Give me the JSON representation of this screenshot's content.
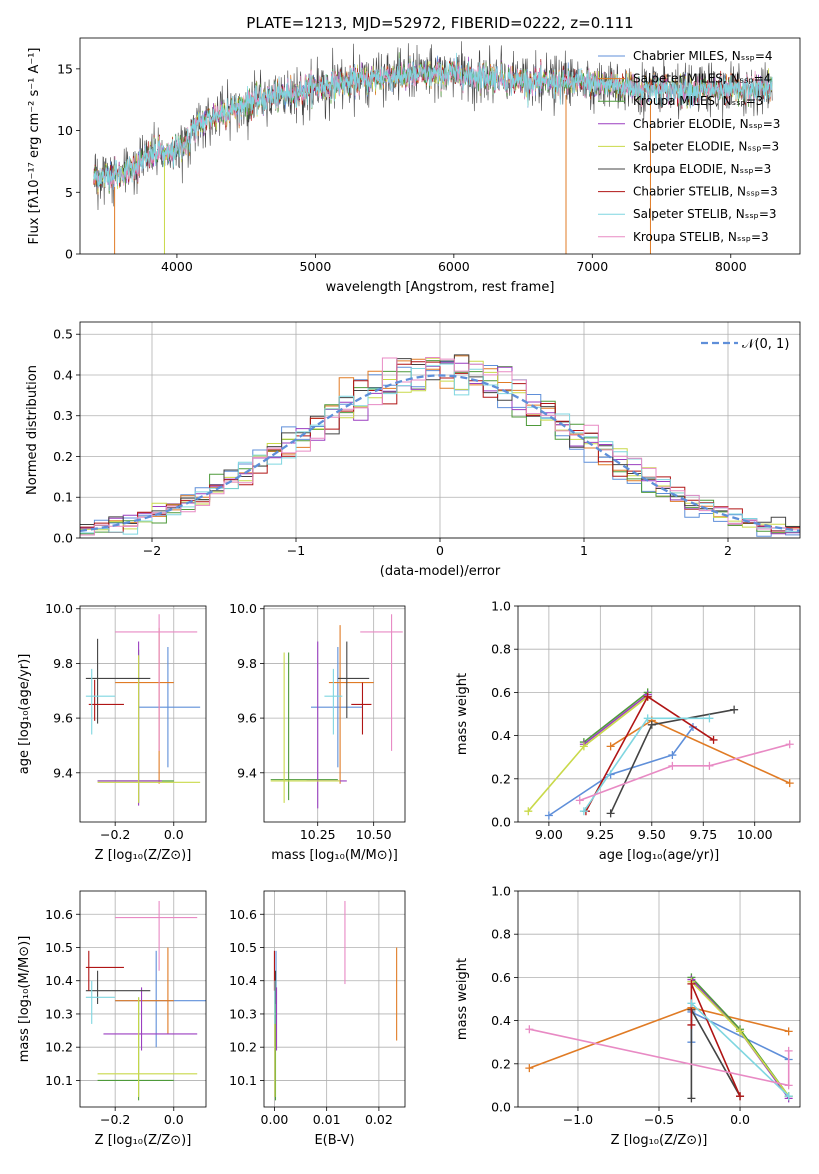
{
  "figure": {
    "colors": [
      "#5f8fd9",
      "#e07b25",
      "#4e9a3a",
      "#9b3fc0",
      "#c9d94a",
      "#444444",
      "#b01515",
      "#7fd6e0",
      "#e88ac4"
    ]
  },
  "chart_data": [
    {
      "id": "spectrum",
      "type": "line",
      "title": "PLATE=1213, MJD=52972, FIBERID=0222, z=0.111",
      "xlabel": "wavelength [Angstrom, rest frame]",
      "ylabel": "Flux [fλ10⁻¹⁷ erg cm⁻² s⁻¹ A⁻¹]",
      "xlim": [
        3300,
        8500
      ],
      "ylim": [
        0,
        17.5
      ],
      "xticks": [
        4000,
        5000,
        6000,
        7000,
        8000
      ],
      "yticks": [
        0,
        5,
        10,
        15
      ],
      "continuum": {
        "x": [
          3400,
          3600,
          3900,
          4200,
          4500,
          5000,
          5500,
          6000,
          6500,
          7000,
          7500,
          8000,
          8300
        ],
        "y": [
          6.2,
          6.5,
          8.5,
          10.8,
          12.2,
          13.5,
          14.4,
          14.6,
          14.0,
          13.8,
          13.3,
          13.2,
          13.4
        ]
      },
      "drop_lines": [
        3550,
        3910,
        6810,
        7420
      ],
      "legend_location": "right",
      "legend": [
        "Chabrier MILES, Nₛₛₚ=4",
        "Salpeter MILES, Nₛₛₚ=4",
        "Kroupa MILES, Nₛₛₚ=3",
        "Chabrier ELODIE, Nₛₛₚ=3",
        "Salpeter ELODIE, Nₛₛₚ=3",
        "Kroupa ELODIE, Nₛₛₚ=3",
        "Chabrier STELIB, Nₛₛₚ=3",
        "Salpeter STELIB, Nₛₛₚ=3",
        "Kroupa STELIB, Nₛₛₚ=3"
      ]
    },
    {
      "id": "residuals",
      "type": "histogram",
      "xlabel": "(data-model)/error",
      "ylabel": "Normed distribution",
      "xlim": [
        -2.5,
        2.5
      ],
      "ylim": [
        0,
        0.53
      ],
      "xticks": [
        -2,
        -1,
        0,
        1,
        2
      ],
      "yticks": [
        0.0,
        0.1,
        0.2,
        0.3,
        0.4,
        0.5
      ],
      "grid": true,
      "bin_width": 0.1,
      "legend_location": "upper right",
      "legend": [
        "𝒩(0, 1)"
      ]
    },
    {
      "id": "age_vs_z",
      "type": "errorbar",
      "xlabel": "Z [log₁₀(Z/Z⊙)]",
      "ylabel": "age  [log₁₀(age/yr)]",
      "xlim": [
        -0.32,
        0.11
      ],
      "ylim": [
        9.22,
        10.01
      ],
      "xticks": [
        -0.2,
        0.0
      ],
      "yticks": [
        9.4,
        9.6,
        9.8,
        10.0
      ],
      "grid": true,
      "points": [
        {
          "c": 0,
          "x": -0.02,
          "y": 9.64,
          "xe": [
            -0.12,
            0.09
          ],
          "ye": [
            9.42,
            9.86
          ]
        },
        {
          "c": 1,
          "x": -0.05,
          "y": 9.73,
          "xe": [
            -0.2,
            0.0
          ],
          "ye": [
            9.36,
            9.93
          ]
        },
        {
          "c": 2,
          "x": -0.12,
          "y": 9.37,
          "xe": [
            -0.26,
            0.0
          ],
          "ye": [
            9.29,
            9.85
          ]
        },
        {
          "c": 3,
          "x": -0.12,
          "y": 9.37,
          "xe": [
            -0.26,
            -0.04
          ],
          "ye": [
            9.28,
            9.88
          ]
        },
        {
          "c": 4,
          "x": -0.12,
          "y": 9.365,
          "xe": [
            -0.26,
            0.09
          ],
          "ye": [
            9.29,
            9.83
          ]
        },
        {
          "c": 5,
          "x": -0.26,
          "y": 9.745,
          "xe": [
            -0.3,
            -0.08
          ],
          "ye": [
            9.58,
            9.89
          ]
        },
        {
          "c": 6,
          "x": -0.27,
          "y": 9.65,
          "xe": [
            -0.29,
            -0.17
          ],
          "ye": [
            9.59,
            9.74
          ]
        },
        {
          "c": 7,
          "x": -0.28,
          "y": 9.68,
          "xe": [
            -0.3,
            -0.2
          ],
          "ye": [
            9.54,
            9.78
          ]
        },
        {
          "c": 8,
          "x": -0.05,
          "y": 9.915,
          "xe": [
            -0.2,
            0.08
          ],
          "ye": [
            9.48,
            9.98
          ]
        }
      ]
    },
    {
      "id": "age_vs_mass",
      "type": "errorbar",
      "xlabel": "mass [log₁₀(M/M⊙)]",
      "ylabel": "",
      "xlim": [
        10.01,
        10.64
      ],
      "ylim": [
        9.22,
        10.01
      ],
      "xticks": [
        10.25,
        10.5
      ],
      "yticks": [
        9.4,
        9.6,
        9.8,
        10.0
      ],
      "grid": true,
      "points": [
        {
          "c": 0,
          "x": 10.34,
          "y": 9.64,
          "xe": [
            10.22,
            10.45
          ],
          "ye": [
            9.42,
            9.86
          ]
        },
        {
          "c": 1,
          "x": 10.35,
          "y": 9.73,
          "xe": [
            10.3,
            10.5
          ],
          "ye": [
            9.36,
            9.94
          ]
        },
        {
          "c": 2,
          "x": 10.12,
          "y": 9.375,
          "xe": [
            10.04,
            10.34
          ],
          "ye": [
            9.3,
            9.84
          ]
        },
        {
          "c": 3,
          "x": 10.25,
          "y": 9.37,
          "xe": [
            10.2,
            10.38
          ],
          "ye": [
            9.27,
            9.88
          ]
        },
        {
          "c": 4,
          "x": 10.1,
          "y": 9.37,
          "xe": [
            10.04,
            10.35
          ],
          "ye": [
            9.29,
            9.84
          ]
        },
        {
          "c": 5,
          "x": 10.38,
          "y": 9.745,
          "xe": [
            10.34,
            10.48
          ],
          "ye": [
            9.6,
            9.88
          ]
        },
        {
          "c": 6,
          "x": 10.45,
          "y": 9.65,
          "xe": [
            10.4,
            10.49
          ],
          "ye": [
            9.54,
            9.73
          ]
        },
        {
          "c": 7,
          "x": 10.32,
          "y": 9.68,
          "xe": [
            10.28,
            10.36
          ],
          "ye": [
            9.54,
            9.78
          ]
        },
        {
          "c": 8,
          "x": 10.58,
          "y": 9.915,
          "xe": [
            10.44,
            10.63
          ],
          "ye": [
            9.48,
            9.98
          ]
        }
      ]
    },
    {
      "id": "mw_vs_age",
      "type": "line",
      "xlabel": "age  [log₁₀(age/yr)]",
      "ylabel": "mass weight",
      "xlim": [
        8.85,
        10.22
      ],
      "ylim": [
        0,
        1.0
      ],
      "xticks": [
        9.0,
        9.25,
        9.5,
        9.75,
        10.0
      ],
      "yticks": [
        0.0,
        0.2,
        0.4,
        0.6,
        0.8,
        1.0
      ],
      "grid": true,
      "series": [
        {
          "c": 0,
          "x": [
            9.0,
            9.3,
            9.6,
            9.7
          ],
          "y": [
            0.03,
            0.22,
            0.31,
            0.44
          ]
        },
        {
          "c": 1,
          "x": [
            9.3,
            9.5,
            10.17
          ],
          "y": [
            0.35,
            0.47,
            0.18
          ]
        },
        {
          "c": 2,
          "x": [
            9.17,
            9.48
          ],
          "y": [
            0.37,
            0.6
          ]
        },
        {
          "c": 3,
          "x": [
            9.17,
            9.48
          ],
          "y": [
            0.36,
            0.59
          ]
        },
        {
          "c": 4,
          "x": [
            8.9,
            9.17,
            9.48
          ],
          "y": [
            0.05,
            0.35,
            0.58
          ]
        },
        {
          "c": 5,
          "x": [
            9.3,
            9.5,
            9.9
          ],
          "y": [
            0.04,
            0.45,
            0.52
          ]
        },
        {
          "c": 6,
          "x": [
            9.18,
            9.48,
            9.8
          ],
          "y": [
            0.05,
            0.58,
            0.38
          ]
        },
        {
          "c": 7,
          "x": [
            9.17,
            9.48,
            9.78
          ],
          "y": [
            0.05,
            0.48,
            0.48
          ]
        },
        {
          "c": 8,
          "x": [
            9.15,
            9.6,
            9.78,
            10.17
          ],
          "y": [
            0.1,
            0.26,
            0.26,
            0.36
          ]
        }
      ]
    },
    {
      "id": "mass_vs_z",
      "type": "errorbar",
      "xlabel": "Z [log₁₀(Z/Z⊙)]",
      "ylabel": "mass [log₁₀(M/M⊙)]",
      "xlim": [
        -0.32,
        0.11
      ],
      "ylim": [
        10.02,
        10.67
      ],
      "xticks": [
        -0.2,
        0.0
      ],
      "yticks": [
        10.1,
        10.2,
        10.3,
        10.4,
        10.5,
        10.6
      ],
      "grid": true,
      "points": [
        {
          "c": 0,
          "x": -0.06,
          "y": 10.34,
          "xe": [
            -0.2,
            0.11
          ],
          "ye": [
            10.2,
            10.49
          ]
        },
        {
          "c": 1,
          "x": -0.02,
          "y": 10.34,
          "xe": [
            -0.2,
            0.0
          ],
          "ye": [
            10.24,
            10.5
          ]
        },
        {
          "c": 2,
          "x": -0.12,
          "y": 10.1,
          "xe": [
            -0.26,
            0.0
          ],
          "ye": [
            10.04,
            10.35
          ]
        },
        {
          "c": 3,
          "x": -0.11,
          "y": 10.24,
          "xe": [
            -0.24,
            0.08
          ],
          "ye": [
            10.19,
            10.38
          ]
        },
        {
          "c": 4,
          "x": -0.12,
          "y": 10.12,
          "xe": [
            -0.26,
            0.08
          ],
          "ye": [
            10.05,
            10.35
          ]
        },
        {
          "c": 5,
          "x": -0.26,
          "y": 10.37,
          "xe": [
            -0.3,
            -0.08
          ],
          "ye": [
            10.33,
            10.43
          ]
        },
        {
          "c": 6,
          "x": -0.29,
          "y": 10.44,
          "xe": [
            -0.3,
            -0.17
          ],
          "ye": [
            10.37,
            10.49
          ]
        },
        {
          "c": 7,
          "x": -0.28,
          "y": 10.35,
          "xe": [
            -0.3,
            -0.2
          ],
          "ye": [
            10.27,
            10.4
          ]
        },
        {
          "c": 8,
          "x": -0.05,
          "y": 10.59,
          "xe": [
            -0.2,
            0.08
          ],
          "ye": [
            10.43,
            10.64
          ]
        }
      ]
    },
    {
      "id": "mass_vs_ebv",
      "type": "errorbar",
      "xlabel": "E(B-V)",
      "ylabel": "",
      "xlim": [
        -0.002,
        0.025
      ],
      "ylim": [
        10.02,
        10.67
      ],
      "xticks": [
        0.0,
        0.01,
        0.02
      ],
      "yticks": [
        10.1,
        10.2,
        10.3,
        10.4,
        10.5,
        10.6
      ],
      "grid": true,
      "points": [
        {
          "c": 0,
          "x": 0.0003,
          "y": 10.34,
          "xe": [
            0.0003,
            0.0003
          ],
          "ye": [
            10.2,
            10.49
          ]
        },
        {
          "c": 1,
          "x": 0.0234,
          "y": 10.34,
          "xe": [
            0.0234,
            0.0234
          ],
          "ye": [
            10.22,
            10.5
          ]
        },
        {
          "c": 2,
          "x": 0.0002,
          "y": 10.1,
          "xe": [
            0.0002,
            0.0002
          ],
          "ye": [
            10.04,
            10.35
          ]
        },
        {
          "c": 3,
          "x": 0.0004,
          "y": 10.24,
          "xe": [
            0.0004,
            0.0004
          ],
          "ye": [
            10.19,
            10.38
          ]
        },
        {
          "c": 4,
          "x": 0.0001,
          "y": 10.12,
          "xe": [
            0.0001,
            0.0001
          ],
          "ye": [
            10.05,
            10.35
          ]
        },
        {
          "c": 5,
          "x": 0.0002,
          "y": 10.37,
          "xe": [
            0.0002,
            0.0002
          ],
          "ye": [
            10.33,
            10.43
          ]
        },
        {
          "c": 6,
          "x": 0.0,
          "y": 10.44,
          "xe": [
            0.0,
            0.0
          ],
          "ye": [
            10.37,
            10.49
          ]
        },
        {
          "c": 7,
          "x": 0.0001,
          "y": 10.35,
          "xe": [
            0.0001,
            0.0001
          ],
          "ye": [
            10.27,
            10.4
          ]
        },
        {
          "c": 8,
          "x": 0.0135,
          "y": 10.59,
          "xe": [
            0.0135,
            0.0135
          ],
          "ye": [
            10.39,
            10.64
          ]
        }
      ]
    },
    {
      "id": "mw_vs_z",
      "type": "line",
      "xlabel": "Z [log₁₀(Z/Z⊙)]",
      "ylabel": "mass weight",
      "xlim": [
        -1.37,
        0.37
      ],
      "ylim": [
        0,
        1.0
      ],
      "xticks": [
        -1.0,
        -0.5,
        0.0
      ],
      "yticks": [
        0.0,
        0.2,
        0.4,
        0.6,
        0.8,
        1.0
      ],
      "grid": true,
      "series": [
        {
          "c": 0,
          "x": [
            -0.3,
            -0.3,
            0.3
          ],
          "y": [
            0.3,
            0.44,
            0.22
          ]
        },
        {
          "c": 1,
          "x": [
            -1.3,
            -0.3,
            0.3
          ],
          "y": [
            0.18,
            0.46,
            0.35
          ]
        },
        {
          "c": 2,
          "x": [
            -0.3,
            0.0,
            0.3
          ],
          "y": [
            0.6,
            0.36,
            0.05
          ]
        },
        {
          "c": 3,
          "x": [
            -0.3,
            0.0,
            0.3
          ],
          "y": [
            0.59,
            0.35,
            0.04
          ]
        },
        {
          "c": 4,
          "x": [
            -0.3,
            0.0,
            0.3
          ],
          "y": [
            0.58,
            0.35,
            0.05
          ]
        },
        {
          "c": 5,
          "x": [
            -0.3,
            -0.3,
            0.0
          ],
          "y": [
            0.04,
            0.45,
            0.05
          ]
        },
        {
          "c": 6,
          "x": [
            -0.3,
            -0.3,
            0.0
          ],
          "y": [
            0.38,
            0.57,
            0.05
          ]
        },
        {
          "c": 7,
          "x": [
            -0.3,
            0.3
          ],
          "y": [
            0.48,
            0.05
          ]
        },
        {
          "c": 8,
          "x": [
            -1.3,
            0.3,
            0.3
          ],
          "y": [
            0.36,
            0.1,
            0.26
          ]
        }
      ]
    }
  ]
}
